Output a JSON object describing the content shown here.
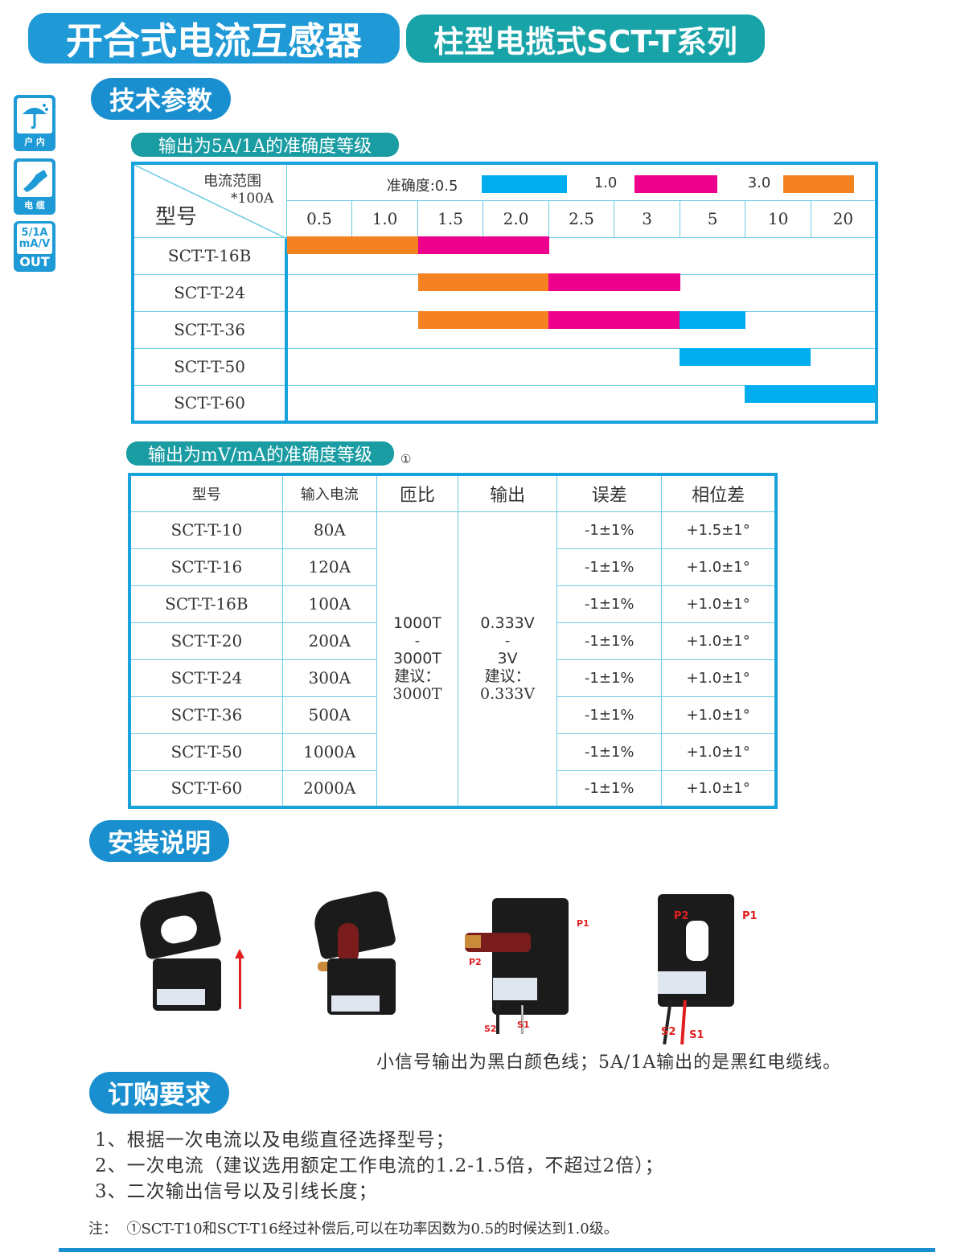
{
  "header": {
    "title": "开合式电流互感器",
    "subtitle": "柱型电揽式SCT-T系列"
  },
  "side_icons": [
    {
      "icon": "umbrella-icon",
      "label": "户 内"
    },
    {
      "icon": "cable-icon",
      "label": "电 缆"
    },
    {
      "icon": "output-icon",
      "text1": "5/1A",
      "text2": "mA/V",
      "label": "OUT"
    }
  ],
  "sections": {
    "tech": "技术参数",
    "install": "安装说明",
    "order": "订购要求"
  },
  "table1": {
    "caption": "输出为5A/1A的准确度等级",
    "corner_top": "电流范围",
    "corner_unit": "*100A",
    "corner_model": "型号",
    "legend_label": "准确度:0.5",
    "legend": [
      {
        "label": "0.5",
        "color": "#00aeef"
      },
      {
        "label": "1.0",
        "color": "#ec008c"
      },
      {
        "label": "3.0",
        "color": "#f58220"
      }
    ],
    "ranges": [
      "0.5",
      "1.0",
      "1.5",
      "2.0",
      "2.5",
      "3",
      "5",
      "10",
      "20"
    ],
    "rows": [
      {
        "model": "SCT-T-16B",
        "classes": [
          "3.0",
          "3.0",
          "1.0",
          "1.0",
          "",
          "",
          "",
          "",
          ""
        ]
      },
      {
        "model": "SCT-T-24",
        "classes": [
          "",
          "",
          "3.0",
          "3.0",
          "1.0",
          "1.0",
          "",
          "",
          ""
        ]
      },
      {
        "model": "SCT-T-36",
        "classes": [
          "",
          "",
          "3.0",
          "3.0",
          "1.0",
          "1.0",
          "0.5",
          "",
          ""
        ]
      },
      {
        "model": "SCT-T-50",
        "classes": [
          "",
          "",
          "",
          "",
          "",
          "",
          "0.5",
          "0.5",
          ""
        ]
      },
      {
        "model": "SCT-T-60",
        "classes": [
          "",
          "",
          "",
          "",
          "",
          "",
          "",
          "0.5",
          "0.5"
        ]
      }
    ]
  },
  "table2": {
    "caption": "输出为mV/mA的准确度等级",
    "footnote_mark": "①",
    "headers": [
      "型号",
      "输入电流",
      "匝比",
      "输出",
      "误差",
      "相位差"
    ],
    "ratio": {
      "a": "1000T",
      "dash": "-",
      "b": "3000T",
      "rec": "建议：",
      "rec_val": "3000T"
    },
    "output": {
      "a": "0.333V",
      "dash": "-",
      "b": "3V",
      "rec": "建议：",
      "rec_val": "0.333V"
    },
    "rows": [
      {
        "model": "SCT-T-10",
        "current": "80A",
        "error": "-1±1%",
        "phase": "+1.5±1°"
      },
      {
        "model": "SCT-T-16",
        "current": "120A",
        "error": "-1±1%",
        "phase": "+1.0±1°"
      },
      {
        "model": "SCT-T-16B",
        "current": "100A",
        "error": "-1±1%",
        "phase": "+1.0±1°"
      },
      {
        "model": "SCT-T-20",
        "current": "200A",
        "error": "-1±1%",
        "phase": "+1.0±1°"
      },
      {
        "model": "SCT-T-24",
        "current": "300A",
        "error": "-1±1%",
        "phase": "+1.0±1°"
      },
      {
        "model": "SCT-T-36",
        "current": "500A",
        "error": "-1±1%",
        "phase": "+1.0±1°"
      },
      {
        "model": "SCT-T-50",
        "current": "1000A",
        "error": "-1±1%",
        "phase": "+1.0±1°"
      },
      {
        "model": "SCT-T-60",
        "current": "2000A",
        "error": "-1±1%",
        "phase": "+1.0±1°"
      }
    ]
  },
  "install": {
    "labels": {
      "p1": "P1",
      "p2": "P2",
      "s1": "S1",
      "s2": "S2"
    },
    "caption": "小信号输出为黑白颜色线；5A/1A输出的是黑红电缆线。"
  },
  "order": [
    "1、根据一次电流以及电缆直径选择型号；",
    "2、一次电流（建议选用额定工作电流的1.2-1.5倍，不超过2倍）；",
    "3、二次输出信号以及引线长度；"
  ],
  "note": "注：  ①SCT-T10和SCT-T16经过补偿后,可以在功率因数为0.5的时候达到1.0级。",
  "colors": {
    "primary": "#1f9ad6",
    "teal": "#17a3a8",
    "class_0_5": "#00aeef",
    "class_1_0": "#ec008c",
    "class_3_0": "#f58220"
  }
}
